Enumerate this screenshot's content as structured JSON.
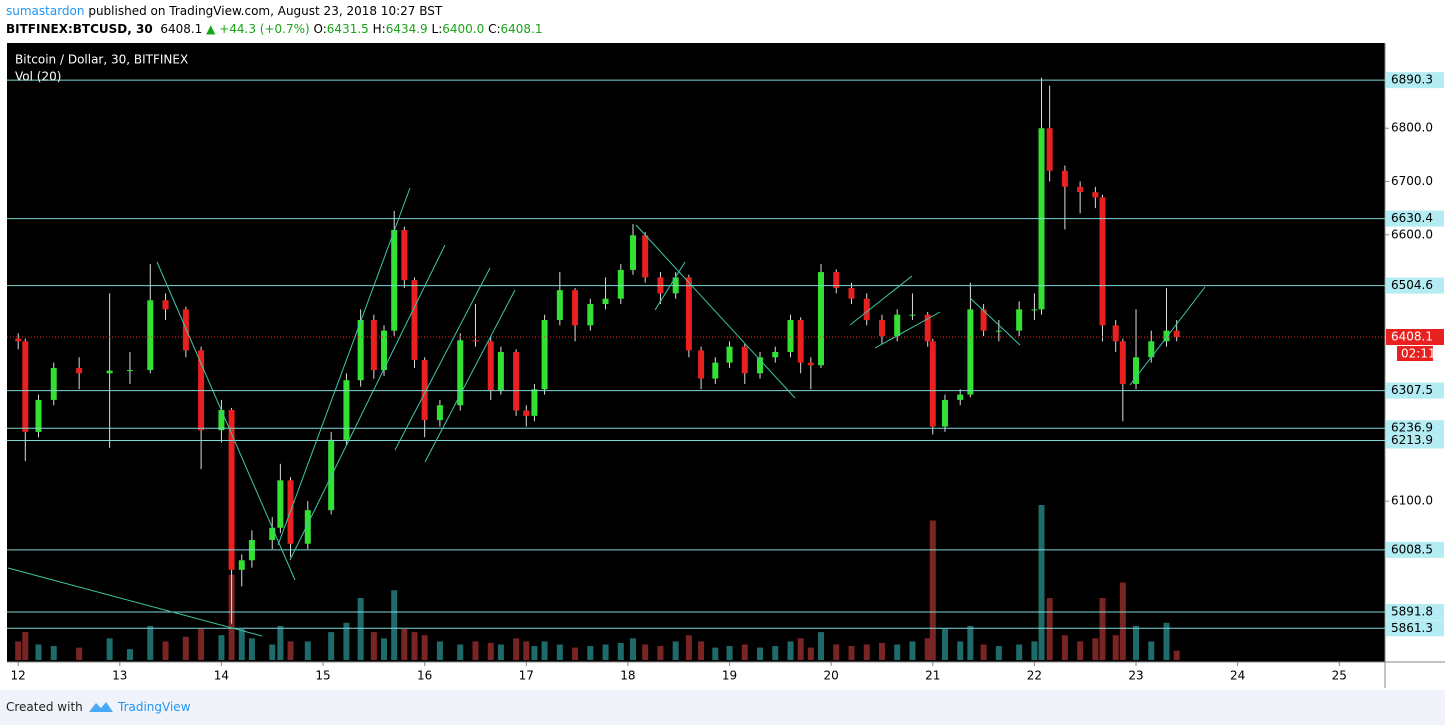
{
  "chart_data": {
    "type": "candlestick",
    "title": "Bitcoin / Dollar, 30, BITFINEX",
    "indicator": "Vol (20)",
    "author": "sumastardon",
    "published": "published on TradingView.com, August 23, 2018 10:27 BST",
    "symbol": "BITFINEX:BTCUSD, 30",
    "quote": {
      "last": "6408.1",
      "change": "▲ +44.3 (+0.7%)",
      "open_label": "O:",
      "open": "6431.5",
      "high_label": "H:",
      "high": "6434.9",
      "low_label": "L:",
      "low": "6400.0",
      "close_label": "C:",
      "close": "6408.1"
    },
    "footer": "Created with",
    "brand": "TradingView",
    "up_color": "#33e033",
    "down_color": "#e82020",
    "volume_up_color": "#1d6b6b",
    "volume_down_color": "#7a2424",
    "level_color": "#7fd8d8",
    "xlim": [
      11.89,
      25.45
    ],
    "xticks": [
      12,
      13,
      14,
      15,
      16,
      17,
      18,
      19,
      20,
      21,
      22,
      23,
      24,
      25
    ],
    "ylim": [
      5798,
      6960
    ],
    "yticks": [
      {
        "value": 6800,
        "label": "6800.0"
      },
      {
        "value": 6700,
        "label": "6700.0"
      },
      {
        "value": 6600,
        "label": "6600.0"
      },
      {
        "value": 6100,
        "label": "6100.0"
      }
    ],
    "levels": [
      6890.3,
      6630.4,
      6504.6,
      6307.5,
      6236.9,
      6213.9,
      6008.5,
      5891.8,
      5861.3
    ],
    "last_price": 6408.1,
    "countdown": "02:11",
    "x": [
      12.0,
      12.07,
      12.2,
      12.35,
      12.6,
      12.9,
      13.1,
      13.3,
      13.45,
      13.65,
      13.8,
      14.0,
      14.1,
      14.2,
      14.3,
      14.5,
      14.58,
      14.68,
      14.85,
      15.08,
      15.23,
      15.37,
      15.5,
      15.6,
      15.7,
      15.8,
      15.9,
      16.0,
      16.15,
      16.35,
      16.5,
      16.65,
      16.75,
      16.9,
      17.0,
      17.08,
      17.18,
      17.33,
      17.48,
      17.63,
      17.78,
      17.93,
      18.05,
      18.17,
      18.32,
      18.47,
      18.6,
      18.72,
      18.86,
      19.0,
      19.15,
      19.3,
      19.45,
      19.6,
      19.7,
      19.8,
      19.9,
      20.05,
      20.2,
      20.35,
      20.5,
      20.65,
      20.8,
      20.95,
      21.0,
      21.12,
      21.27,
      21.37,
      21.5,
      21.65,
      21.85,
      22.0,
      22.07,
      22.15,
      22.3,
      22.45,
      22.6,
      22.67,
      22.8,
      22.87,
      23.0,
      23.15,
      23.3,
      23.4
    ],
    "open": [
      6405,
      6400,
      6230,
      6290,
      6350,
      6340,
      6345,
      6346,
      6477,
      6460,
      6383,
      6233,
      6271,
      5971,
      5989,
      6027,
      6050,
      6139,
      6020,
      6083,
      6215,
      6327,
      6440,
      6346,
      6420,
      6609,
      6515,
      6365,
      6252,
      6280,
      6402,
      6400,
      6308,
      6380,
      6270,
      6260,
      6310,
      6440,
      6496,
      6430,
      6470,
      6480,
      6534,
      6599,
      6520,
      6490,
      6520,
      6383,
      6330,
      6360,
      6390,
      6340,
      6370,
      6380,
      6440,
      6360,
      6355,
      6530,
      6500,
      6480,
      6440,
      6410,
      6450,
      6450,
      6400,
      6240,
      6290,
      6300,
      6460,
      6420,
      6420,
      6460,
      6460,
      6800,
      6720,
      6690,
      6680,
      6670,
      6430,
      6400,
      6320,
      6370,
      6400,
      6420
    ],
    "high": [
      6415,
      6405,
      6300,
      6360,
      6370,
      6490,
      6380,
      6545,
      6490,
      6465,
      6390,
      6290,
      6275,
      6000,
      6045,
      6070,
      6170,
      6145,
      6100,
      6230,
      6340,
      6460,
      6450,
      6430,
      6645,
      6615,
      6520,
      6370,
      6290,
      6415,
      6470,
      6410,
      6390,
      6385,
      6280,
      6320,
      6450,
      6530,
      6500,
      6480,
      6520,
      6545,
      6620,
      6605,
      6530,
      6530,
      6525,
      6390,
      6370,
      6400,
      6395,
      6380,
      6390,
      6450,
      6445,
      6370,
      6545,
      6535,
      6510,
      6490,
      6450,
      6460,
      6490,
      6455,
      6405,
      6300,
      6310,
      6510,
      6470,
      6440,
      6475,
      6490,
      6895,
      6880,
      6730,
      6700,
      6690,
      6675,
      6440,
      6405,
      6460,
      6420,
      6500,
      6440
    ],
    "low": [
      6385,
      6175,
      6220,
      6280,
      6310,
      6200,
      6320,
      6340,
      6440,
      6370,
      6160,
      6210,
      5870,
      5940,
      5975,
      6010,
      6040,
      5995,
      6010,
      6075,
      6205,
      6315,
      6330,
      6335,
      6410,
      6500,
      6350,
      6220,
      6240,
      6270,
      6390,
      6290,
      6300,
      6260,
      6240,
      6250,
      6300,
      6430,
      6400,
      6420,
      6460,
      6470,
      6525,
      6510,
      6470,
      6480,
      6370,
      6310,
      6320,
      6350,
      6320,
      6330,
      6360,
      6370,
      6340,
      6310,
      6350,
      6490,
      6470,
      6430,
      6395,
      6400,
      6440,
      6390,
      6225,
      6230,
      6280,
      6295,
      6410,
      6400,
      6410,
      6440,
      6450,
      6700,
      6610,
      6640,
      6650,
      6400,
      6380,
      6250,
      6310,
      6360,
      6390,
      6400
    ],
    "close": [
      6400,
      6230,
      6290,
      6350,
      6340,
      6345,
      6346,
      6477,
      6460,
      6383,
      6233,
      6271,
      5971,
      5989,
      6027,
      6050,
      6139,
      6020,
      6083,
      6215,
      6327,
      6440,
      6346,
      6420,
      6609,
      6515,
      6365,
      6252,
      6280,
      6402,
      6400,
      6308,
      6380,
      6270,
      6260,
      6310,
      6440,
      6496,
      6430,
      6470,
      6480,
      6534,
      6599,
      6520,
      6490,
      6520,
      6383,
      6330,
      6360,
      6390,
      6340,
      6370,
      6380,
      6440,
      6360,
      6355,
      6530,
      6500,
      6480,
      6440,
      6410,
      6450,
      6450,
      6400,
      6240,
      6290,
      6300,
      6460,
      6420,
      6420,
      6460,
      6460,
      6800,
      6720,
      6690,
      6680,
      6670,
      6430,
      6400,
      6320,
      6370,
      6400,
      6420,
      6408.1
    ],
    "volume": [
      12,
      18,
      10,
      9,
      8,
      14,
      7,
      22,
      12,
      15,
      20,
      16,
      55,
      20,
      14,
      10,
      22,
      12,
      12,
      18,
      24,
      40,
      18,
      14,
      45,
      20,
      18,
      16,
      12,
      10,
      12,
      11,
      10,
      14,
      12,
      9,
      12,
      10,
      8,
      9,
      10,
      11,
      14,
      10,
      9,
      12,
      16,
      12,
      8,
      9,
      10,
      8,
      9,
      12,
      14,
      8,
      18,
      10,
      9,
      10,
      11,
      10,
      12,
      14,
      90,
      20,
      12,
      22,
      10,
      9,
      10,
      12,
      100,
      40,
      16,
      12,
      14,
      40,
      16,
      50,
      22,
      12,
      24,
      6
    ]
  }
}
